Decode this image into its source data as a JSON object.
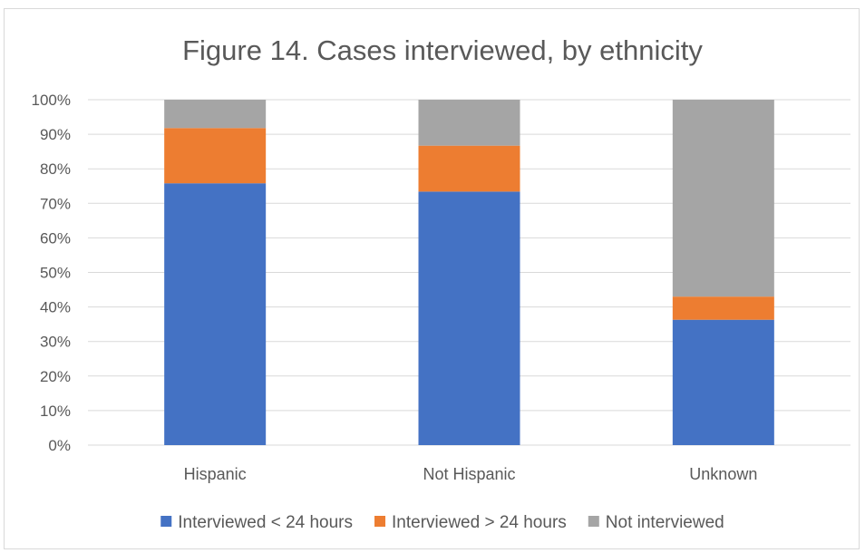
{
  "chart_data": {
    "type": "bar",
    "stacked": true,
    "title": "Figure 14. Cases interviewed, by ethnicity",
    "xlabel": "",
    "ylabel": "",
    "categories": [
      "Hispanic",
      "Not Hispanic",
      "Unknown"
    ],
    "series": [
      {
        "name": "Interviewed < 24 hours",
        "values": [
          75.8,
          73.4,
          36.3
        ],
        "color": "#4472C4"
      },
      {
        "name": "Interviewed > 24 hours",
        "values": [
          16.0,
          13.3,
          6.7
        ],
        "color": "#ED7D31"
      },
      {
        "name": "Not interviewed",
        "values": [
          8.2,
          13.3,
          57.0
        ],
        "color": "#A5A5A5"
      }
    ],
    "ylim": [
      0,
      100
    ],
    "yticks": [
      "0%",
      "10%",
      "20%",
      "30%",
      "40%",
      "50%",
      "60%",
      "70%",
      "80%",
      "90%",
      "100%"
    ],
    "grid": true,
    "legend": "bottom",
    "gridline_color": "#d9d9d9"
  }
}
